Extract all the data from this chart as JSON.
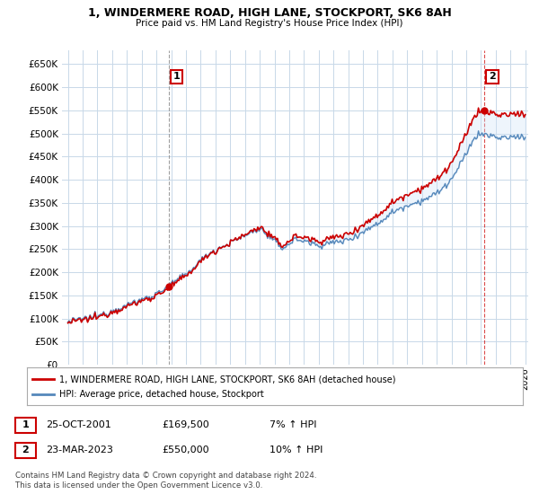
{
  "title": "1, WINDERMERE ROAD, HIGH LANE, STOCKPORT, SK6 8AH",
  "subtitle": "Price paid vs. HM Land Registry's House Price Index (HPI)",
  "ylim": [
    0,
    680000
  ],
  "yticks": [
    0,
    50000,
    100000,
    150000,
    200000,
    250000,
    300000,
    350000,
    400000,
    450000,
    500000,
    550000,
    600000,
    650000
  ],
  "sale1_date": 2001.82,
  "sale1_price": 169500,
  "sale2_date": 2023.23,
  "sale2_price": 550000,
  "red_color": "#cc0000",
  "blue_color": "#5588bb",
  "fill_color": "#d0e4f7",
  "grid_color": "#c8d8e8",
  "legend_label1": "1, WINDERMERE ROAD, HIGH LANE, STOCKPORT, SK6 8AH (detached house)",
  "legend_label2": "HPI: Average price, detached house, Stockport",
  "annotation1_label": "1",
  "annotation2_label": "2",
  "table_row1": [
    "1",
    "25-OCT-2001",
    "£169,500",
    "7% ↑ HPI"
  ],
  "table_row2": [
    "2",
    "23-MAR-2023",
    "£550,000",
    "10% ↑ HPI"
  ],
  "footer": "Contains HM Land Registry data © Crown copyright and database right 2024.\nThis data is licensed under the Open Government Licence v3.0.",
  "background_color": "#ffffff"
}
